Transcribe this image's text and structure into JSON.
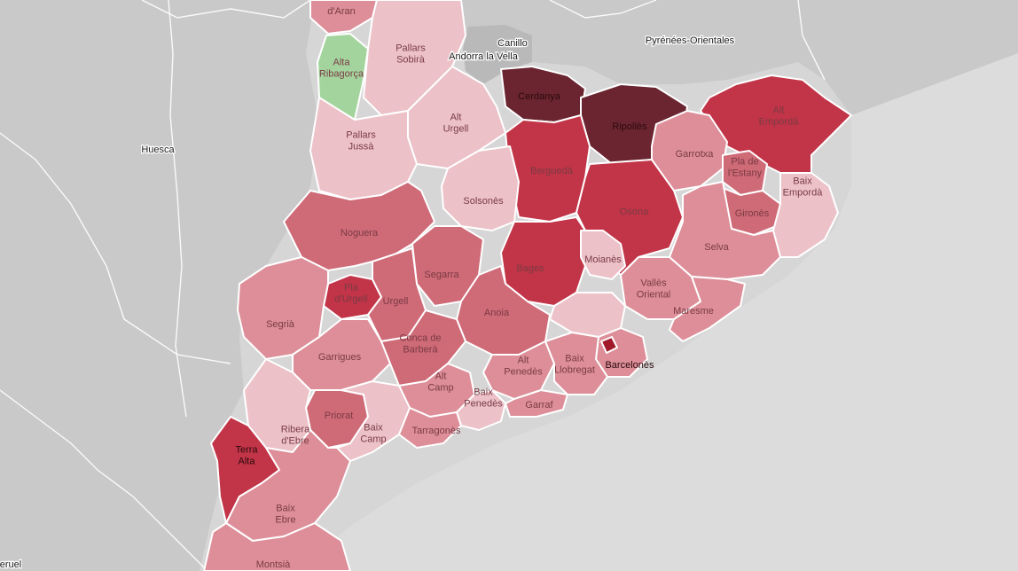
{
  "map": {
    "colors": {
      "background": "#d6d6d6",
      "sea": "#dcdcdc",
      "land_other": "#c9c9c9",
      "andorra": "#b9b9b9",
      "pale": "#ecc1c8",
      "light": "#dd8e98",
      "medium": "#cf6a77",
      "strong": "#c23447",
      "dark": "#6b2530",
      "green": "#a4d49e"
    },
    "places": [
      {
        "id": "huesca",
        "label": "Huesca"
      },
      {
        "id": "canillo",
        "label": "Canillo"
      },
      {
        "id": "andorra-la-vella",
        "label": "Andorra la Vella"
      },
      {
        "id": "pyrenees-orientales",
        "label": "Pyrénées-Orientales"
      },
      {
        "id": "teruel",
        "label": "eruel"
      }
    ],
    "comarques": [
      {
        "id": "val-d-aran",
        "label": "d'Aran",
        "level": "light"
      },
      {
        "id": "alta-ribagorca",
        "label": "Alta Ribagorça",
        "level": "green"
      },
      {
        "id": "pallars-sobira",
        "label": "Pallars Sobirà",
        "level": "pale"
      },
      {
        "id": "alt-urgell",
        "label": "Alt Urgell",
        "level": "pale"
      },
      {
        "id": "cerdanya",
        "label": "Cerdanya",
        "level": "dark"
      },
      {
        "id": "ripolles",
        "label": "Ripollès",
        "level": "dark"
      },
      {
        "id": "alt-emporda",
        "label": "Alt Empordà",
        "level": "strong"
      },
      {
        "id": "pallars-jussa",
        "label": "Pallars Jussà",
        "level": "pale"
      },
      {
        "id": "bergueda",
        "label": "Berguedà",
        "level": "strong"
      },
      {
        "id": "garrotxa",
        "label": "Garrotxa",
        "level": "light"
      },
      {
        "id": "pla-de-l-estany",
        "label": "Pla de l'Estany",
        "level": "medium"
      },
      {
        "id": "solsones",
        "label": "Solsonès",
        "level": "pale"
      },
      {
        "id": "girones",
        "label": "Gironès",
        "level": "medium"
      },
      {
        "id": "baix-emporda",
        "label": "Baix Empordà",
        "level": "pale"
      },
      {
        "id": "osona",
        "label": "Osona",
        "level": "strong"
      },
      {
        "id": "noguera",
        "label": "Noguera",
        "level": "medium"
      },
      {
        "id": "selva",
        "label": "Selva",
        "level": "light"
      },
      {
        "id": "bages",
        "label": "Bages",
        "level": "strong"
      },
      {
        "id": "moianes",
        "label": "Moianès",
        "level": "pale"
      },
      {
        "id": "segarra",
        "label": "Segarra",
        "level": "medium"
      },
      {
        "id": "pla-d-urgell",
        "label": "Pla d'Urgell",
        "level": "strong"
      },
      {
        "id": "urgell",
        "label": "Urgell",
        "level": "medium"
      },
      {
        "id": "segria",
        "label": "Segrià",
        "level": "light"
      },
      {
        "id": "valles-oriental",
        "label": "Vallès Oriental",
        "level": "light"
      },
      {
        "id": "maresme",
        "label": "Maresme",
        "level": "light"
      },
      {
        "id": "anoia",
        "label": "Anoia",
        "level": "medium"
      },
      {
        "id": "valles-occidental",
        "label": "",
        "level": "pale"
      },
      {
        "id": "garrigues",
        "label": "Garrigues",
        "level": "light"
      },
      {
        "id": "conca-de-barbera",
        "label": "Conca de Barberà",
        "level": "medium"
      },
      {
        "id": "barcelones",
        "label": "Barcelonès",
        "level": "light"
      },
      {
        "id": "alt-penedes",
        "label": "Alt Penedès",
        "level": "light"
      },
      {
        "id": "baix-llobregat",
        "label": "Baix Llobregat",
        "level": "light"
      },
      {
        "id": "alt-camp",
        "label": "Alt Camp",
        "level": "light"
      },
      {
        "id": "baix-penedes",
        "label": "Baix Penedès",
        "level": "pale"
      },
      {
        "id": "garraf",
        "label": "Garraf",
        "level": "light"
      },
      {
        "id": "priorat",
        "label": "Priorat",
        "level": "medium"
      },
      {
        "id": "ribera-d-ebre",
        "label": "Ribera d'Ebre",
        "level": "pale"
      },
      {
        "id": "baix-camp",
        "label": "Baix Camp",
        "level": "pale"
      },
      {
        "id": "tarragones",
        "label": "Tarragonès",
        "level": "light"
      },
      {
        "id": "terra-alta",
        "label": "Terra Alta",
        "level": "strong"
      },
      {
        "id": "baix-ebre",
        "label": "Baix Ebre",
        "level": "light"
      },
      {
        "id": "montsia",
        "label": "Montsià",
        "level": "light"
      }
    ]
  }
}
